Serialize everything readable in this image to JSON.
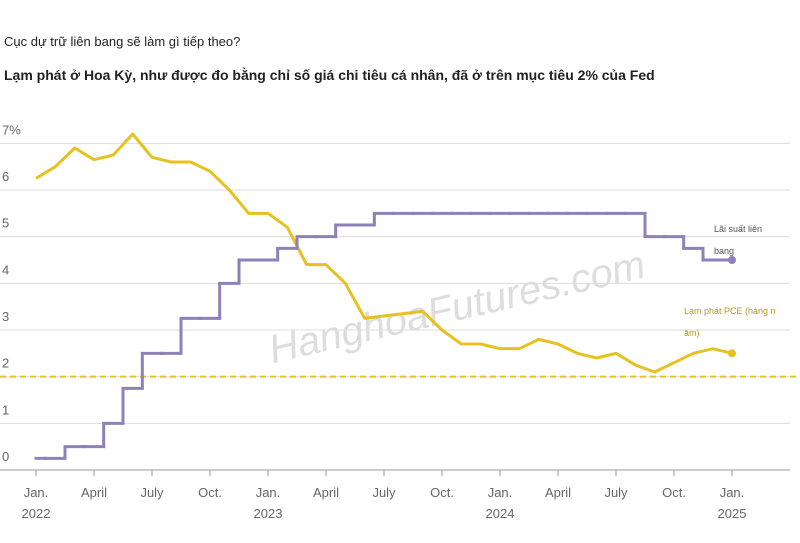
{
  "chart_data": {
    "type": "line",
    "title": "Cục dự trữ liên bang sẽ làm gì tiếp theo?",
    "subtitle": "Lạm phát ở Hoa Kỳ, như được đo bằng chỉ số giá chi tiêu cá nhân, đã ở trên mục tiêu 2% của Fed",
    "watermark": "HanghoaFutures.com",
    "x": [
      "2022-01",
      "2022-02",
      "2022-03",
      "2022-04",
      "2022-05",
      "2022-06",
      "2022-07",
      "2022-08",
      "2022-09",
      "2022-10",
      "2022-11",
      "2022-12",
      "2023-01",
      "2023-02",
      "2023-03",
      "2023-04",
      "2023-05",
      "2023-06",
      "2023-07",
      "2023-08",
      "2023-09",
      "2023-10",
      "2023-11",
      "2023-12",
      "2024-01",
      "2024-02",
      "2024-03",
      "2024-04",
      "2024-05",
      "2024-06",
      "2024-07",
      "2024-08",
      "2024-09",
      "2024-10",
      "2024-11",
      "2024-12",
      "2025-01"
    ],
    "series": [
      {
        "name": "Lạm phát PCE (hàng năm)",
        "color": "#e6c11f",
        "values": [
          6.25,
          6.5,
          6.9,
          6.65,
          6.75,
          7.2,
          6.7,
          6.6,
          6.6,
          6.4,
          6.0,
          5.5,
          5.5,
          5.2,
          4.4,
          4.4,
          4.0,
          3.25,
          3.3,
          3.35,
          3.4,
          3.0,
          2.7,
          2.7,
          2.6,
          2.6,
          2.8,
          2.7,
          2.5,
          2.4,
          2.5,
          2.25,
          2.1,
          2.3,
          2.5,
          2.6,
          2.5
        ]
      },
      {
        "name": "Lãi suất liên bang",
        "color": "#8e80b8",
        "step": "mid",
        "values": [
          0.25,
          0.25,
          0.5,
          0.5,
          1.0,
          1.75,
          2.5,
          2.5,
          3.25,
          3.25,
          4.0,
          4.5,
          4.5,
          4.75,
          5.0,
          5.0,
          5.25,
          5.25,
          5.5,
          5.5,
          5.5,
          5.5,
          5.5,
          5.5,
          5.5,
          5.5,
          5.5,
          5.5,
          5.5,
          5.5,
          5.5,
          5.5,
          5.0,
          5.0,
          4.75,
          4.5,
          4.5
        ]
      }
    ],
    "target": 2,
    "target_color": "#e6c11f",
    "ylim": [
      0,
      7.2
    ],
    "yticks": [
      0,
      1,
      2,
      3,
      4,
      5,
      6,
      {
        "value": 7,
        "label": "7%"
      }
    ],
    "xticks": [
      {
        "value": "2022-01",
        "label": "Jan."
      },
      {
        "value": "2022-04",
        "label": "April"
      },
      {
        "value": "2022-07",
        "label": "July"
      },
      {
        "value": "2022-10",
        "label": "Oct."
      },
      {
        "value": "2023-01",
        "label": "Jan."
      },
      {
        "value": "2023-04",
        "label": "April"
      },
      {
        "value": "2023-07",
        "label": "July"
      },
      {
        "value": "2023-10",
        "label": "Oct."
      },
      {
        "value": "2024-01",
        "label": "Jan."
      },
      {
        "value": "2024-04",
        "label": "April"
      },
      {
        "value": "2024-07",
        "label": "July"
      },
      {
        "value": "2024-10",
        "label": "Oct."
      },
      {
        "value": "2025-01",
        "label": "Jan."
      }
    ],
    "x_year_labels": [
      {
        "value": "2022-01",
        "label": "2022"
      },
      {
        "value": "2023-01",
        "label": "2023"
      },
      {
        "value": "2024-01",
        "label": "2024"
      },
      {
        "value": "2025-01",
        "label": "2025"
      }
    ],
    "grid": true
  }
}
